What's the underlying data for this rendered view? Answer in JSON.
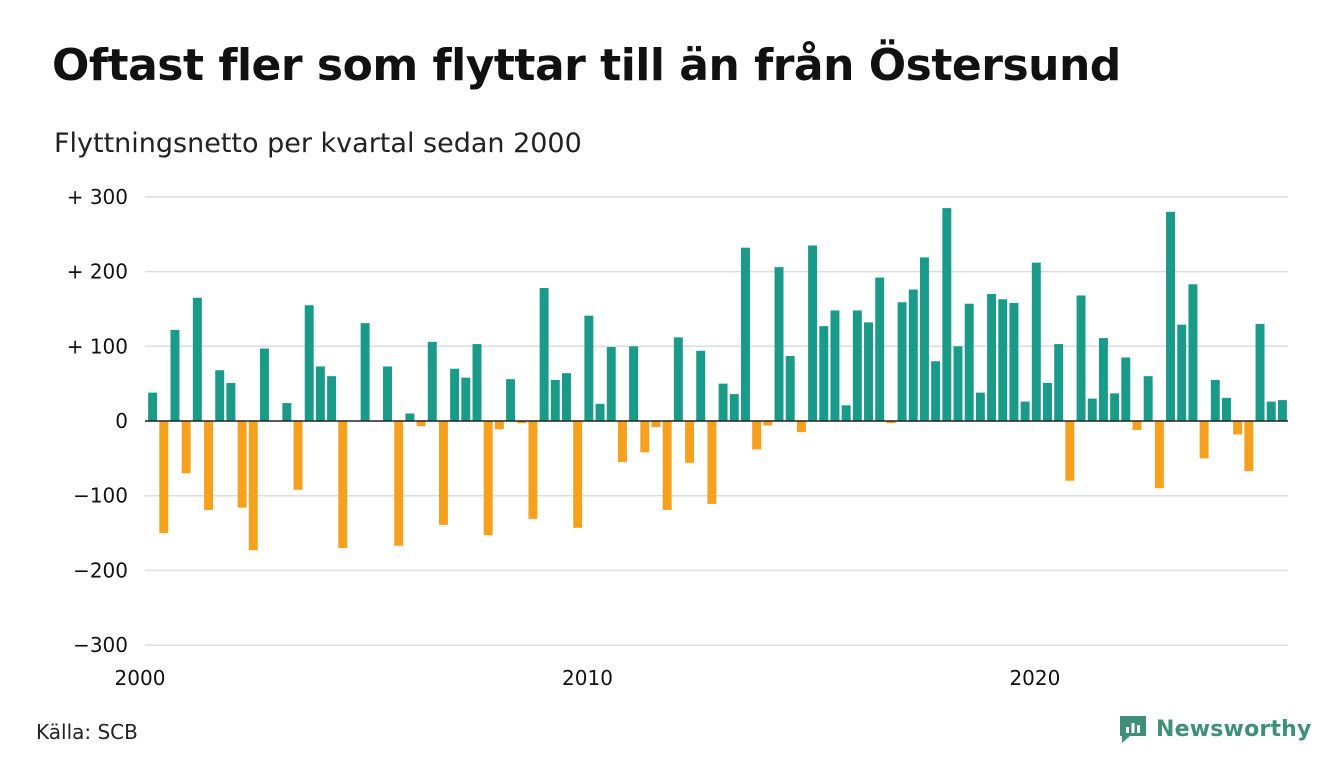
{
  "title": "Oftast fler som flyttar till än från Östersund",
  "subtitle": "Flyttningsnetto per kvartal sedan 2000",
  "source": "Källa: SCB",
  "brand": "Newsworthy",
  "colors": {
    "positive": "#1a9a89",
    "negative": "#f6a11e",
    "grid": "#dddddd",
    "brand": "#3f8f7a"
  },
  "chart_data": {
    "type": "bar",
    "title": "Oftast fler som flyttar till än från Östersund",
    "subtitle": "Flyttningsnetto per kvartal sedan 2000",
    "x_tick_labels": [
      "2000",
      "2010",
      "2020"
    ],
    "y_tick_labels": [
      "+ 300",
      "+ 200",
      "+ 100",
      "0",
      "−100",
      "−200",
      "−300"
    ],
    "ylim": [
      -300,
      300
    ],
    "grid": true,
    "start": "2000 Q1",
    "end": "2025 Q2",
    "quarters": [
      "2000Q1",
      "2000Q2",
      "2000Q3",
      "2000Q4",
      "2001Q1",
      "2001Q2",
      "2001Q3",
      "2001Q4",
      "2002Q1",
      "2002Q2",
      "2002Q3",
      "2002Q4",
      "2003Q1",
      "2003Q2",
      "2003Q3",
      "2003Q4",
      "2004Q1",
      "2004Q2",
      "2004Q3",
      "2004Q4",
      "2005Q1",
      "2005Q2",
      "2005Q3",
      "2005Q4",
      "2006Q1",
      "2006Q2",
      "2006Q3",
      "2006Q4",
      "2007Q1",
      "2007Q2",
      "2007Q3",
      "2007Q4",
      "2008Q1",
      "2008Q2",
      "2008Q3",
      "2008Q4",
      "2009Q1",
      "2009Q2",
      "2009Q3",
      "2009Q4",
      "2010Q1",
      "2010Q2",
      "2010Q3",
      "2010Q4",
      "2011Q1",
      "2011Q2",
      "2011Q3",
      "2011Q4",
      "2012Q1",
      "2012Q2",
      "2012Q3",
      "2012Q4",
      "2013Q1",
      "2013Q2",
      "2013Q3",
      "2013Q4",
      "2014Q1",
      "2014Q2",
      "2014Q3",
      "2014Q4",
      "2015Q1",
      "2015Q2",
      "2015Q3",
      "2015Q4",
      "2016Q1",
      "2016Q2",
      "2016Q3",
      "2016Q4",
      "2017Q1",
      "2017Q2",
      "2017Q3",
      "2017Q4",
      "2018Q1",
      "2018Q2",
      "2018Q3",
      "2018Q4",
      "2019Q1",
      "2019Q2",
      "2019Q3",
      "2019Q4",
      "2020Q1",
      "2020Q2",
      "2020Q3",
      "2020Q4",
      "2021Q1",
      "2021Q2",
      "2021Q3",
      "2021Q4",
      "2022Q1",
      "2022Q2",
      "2022Q3",
      "2022Q4",
      "2023Q1",
      "2023Q2",
      "2023Q3",
      "2023Q4",
      "2024Q1",
      "2024Q2",
      "2024Q3",
      "2024Q4",
      "2025Q1",
      "2025Q2"
    ],
    "values": [
      38,
      -150,
      122,
      -70,
      165,
      -119,
      68,
      51,
      -116,
      -173,
      97,
      0,
      24,
      -92,
      155,
      73,
      60,
      -170,
      0,
      131,
      0,
      73,
      -167,
      10,
      -7,
      106,
      -139,
      70,
      58,
      103,
      -153,
      -11,
      56,
      -3,
      -131,
      178,
      55,
      64,
      -143,
      141,
      23,
      99,
      -55,
      100,
      -42,
      -8,
      -119,
      112,
      -56,
      94,
      -111,
      50,
      36,
      232,
      -38,
      -6,
      206,
      87,
      -15,
      235,
      127,
      148,
      21,
      148,
      132,
      192,
      -3,
      159,
      176,
      219,
      80,
      285,
      100,
      157,
      38,
      170,
      163,
      158,
      26,
      212,
      51,
      103,
      -80,
      168,
      30,
      111,
      37,
      85,
      -12,
      60,
      -90,
      280,
      129,
      183,
      -50,
      55,
      31,
      -18,
      -67,
      130,
      26,
      28
    ]
  }
}
